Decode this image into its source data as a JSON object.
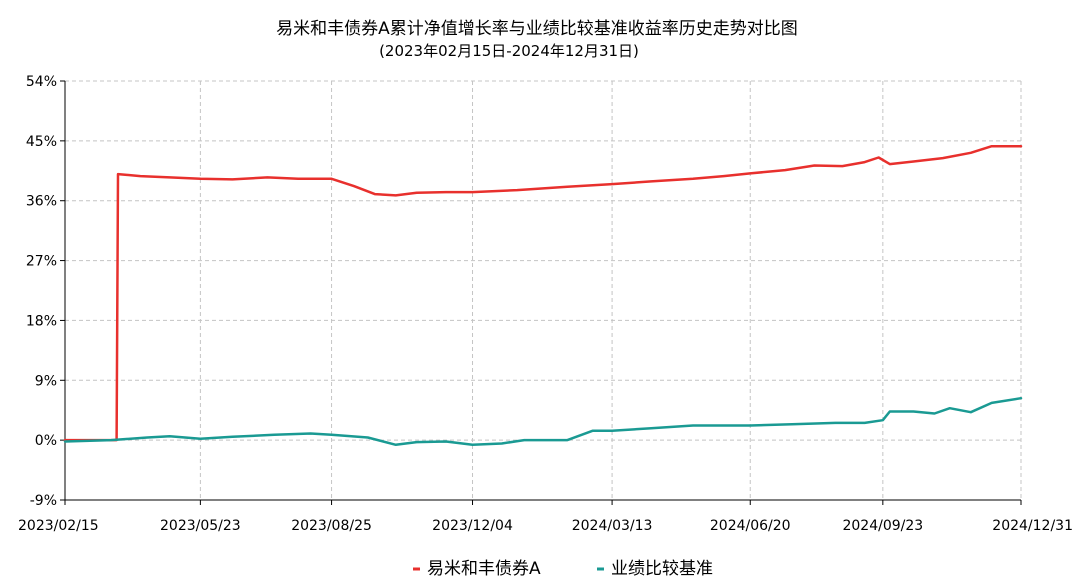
{
  "chart_data": {
    "type": "line",
    "title": "易米和丰债券A累计净值增长率与业绩比较基准收益率历史走势对比图",
    "subtitle": "(2023年02月15日-2024年12月31日)",
    "xlabel": "",
    "ylabel": "",
    "grid": true,
    "legend_position": "bottom-center",
    "ylim": [
      -9,
      54
    ],
    "y_ticks": [
      -9,
      0,
      9,
      18,
      27,
      36,
      45,
      54
    ],
    "y_tick_labels": [
      "-9%",
      "0%",
      "9%",
      "18%",
      "27%",
      "36%",
      "45%",
      "54%"
    ],
    "x_range": [
      "2023-02-15",
      "2024-12-31"
    ],
    "x_ticks": [
      "2023-02-15",
      "2023-05-23",
      "2023-08-25",
      "2023-12-04",
      "2024-03-13",
      "2024-06-20",
      "2024-09-23",
      "2024-12-31"
    ],
    "x_tick_labels": [
      "2023/02/15",
      "2023/05/23",
      "2023/08/25",
      "2023/12/04",
      "2024/03/13",
      "2024/06/20",
      "2024/09/23",
      "2024/12/31"
    ],
    "series": [
      {
        "name": "易米和丰债券A",
        "color": "#e8302d",
        "points": [
          [
            "2023-02-15",
            0.0
          ],
          [
            "2023-03-24",
            0.0
          ],
          [
            "2023-03-25",
            40.0
          ],
          [
            "2023-04-10",
            39.7
          ],
          [
            "2023-05-01",
            39.5
          ],
          [
            "2023-05-23",
            39.3
          ],
          [
            "2023-06-15",
            39.2
          ],
          [
            "2023-07-10",
            39.5
          ],
          [
            "2023-08-01",
            39.3
          ],
          [
            "2023-08-25",
            39.3
          ],
          [
            "2023-09-10",
            38.2
          ],
          [
            "2023-09-25",
            37.0
          ],
          [
            "2023-10-10",
            36.8
          ],
          [
            "2023-10-25",
            37.2
          ],
          [
            "2023-11-15",
            37.3
          ],
          [
            "2023-12-04",
            37.3
          ],
          [
            "2024-01-05",
            37.6
          ],
          [
            "2024-02-10",
            38.1
          ],
          [
            "2024-03-13",
            38.5
          ],
          [
            "2024-04-10",
            38.9
          ],
          [
            "2024-05-10",
            39.3
          ],
          [
            "2024-06-01",
            39.7
          ],
          [
            "2024-06-20",
            40.1
          ],
          [
            "2024-07-15",
            40.6
          ],
          [
            "2024-08-05",
            41.3
          ],
          [
            "2024-08-25",
            41.2
          ],
          [
            "2024-09-10",
            41.8
          ],
          [
            "2024-09-20",
            42.5
          ],
          [
            "2024-09-28",
            41.5
          ],
          [
            "2024-10-15",
            41.9
          ],
          [
            "2024-11-05",
            42.4
          ],
          [
            "2024-11-25",
            43.2
          ],
          [
            "2024-12-10",
            44.2
          ],
          [
            "2024-12-31",
            44.2
          ]
        ]
      },
      {
        "name": "业绩比较基准",
        "color": "#1a9a93",
        "points": [
          [
            "2023-02-15",
            -0.2
          ],
          [
            "2023-03-20",
            0.0
          ],
          [
            "2023-04-15",
            0.4
          ],
          [
            "2023-05-01",
            0.6
          ],
          [
            "2023-05-23",
            0.2
          ],
          [
            "2023-06-15",
            0.5
          ],
          [
            "2023-07-15",
            0.8
          ],
          [
            "2023-08-10",
            1.0
          ],
          [
            "2023-08-25",
            0.8
          ],
          [
            "2023-09-20",
            0.4
          ],
          [
            "2023-10-10",
            -0.7
          ],
          [
            "2023-10-25",
            -0.3
          ],
          [
            "2023-11-15",
            -0.2
          ],
          [
            "2023-12-04",
            -0.7
          ],
          [
            "2023-12-25",
            -0.5
          ],
          [
            "2024-01-10",
            0.0
          ],
          [
            "2024-02-10",
            0.0
          ],
          [
            "2024-02-28",
            1.4
          ],
          [
            "2024-03-13",
            1.4
          ],
          [
            "2024-04-10",
            1.8
          ],
          [
            "2024-05-10",
            2.2
          ],
          [
            "2024-06-20",
            2.2
          ],
          [
            "2024-07-20",
            2.4
          ],
          [
            "2024-08-20",
            2.6
          ],
          [
            "2024-09-10",
            2.6
          ],
          [
            "2024-09-23",
            3.0
          ],
          [
            "2024-09-28",
            4.3
          ],
          [
            "2024-10-15",
            4.3
          ],
          [
            "2024-10-30",
            4.0
          ],
          [
            "2024-11-10",
            4.8
          ],
          [
            "2024-11-25",
            4.2
          ],
          [
            "2024-12-10",
            5.6
          ],
          [
            "2024-12-31",
            6.3
          ]
        ]
      }
    ]
  }
}
